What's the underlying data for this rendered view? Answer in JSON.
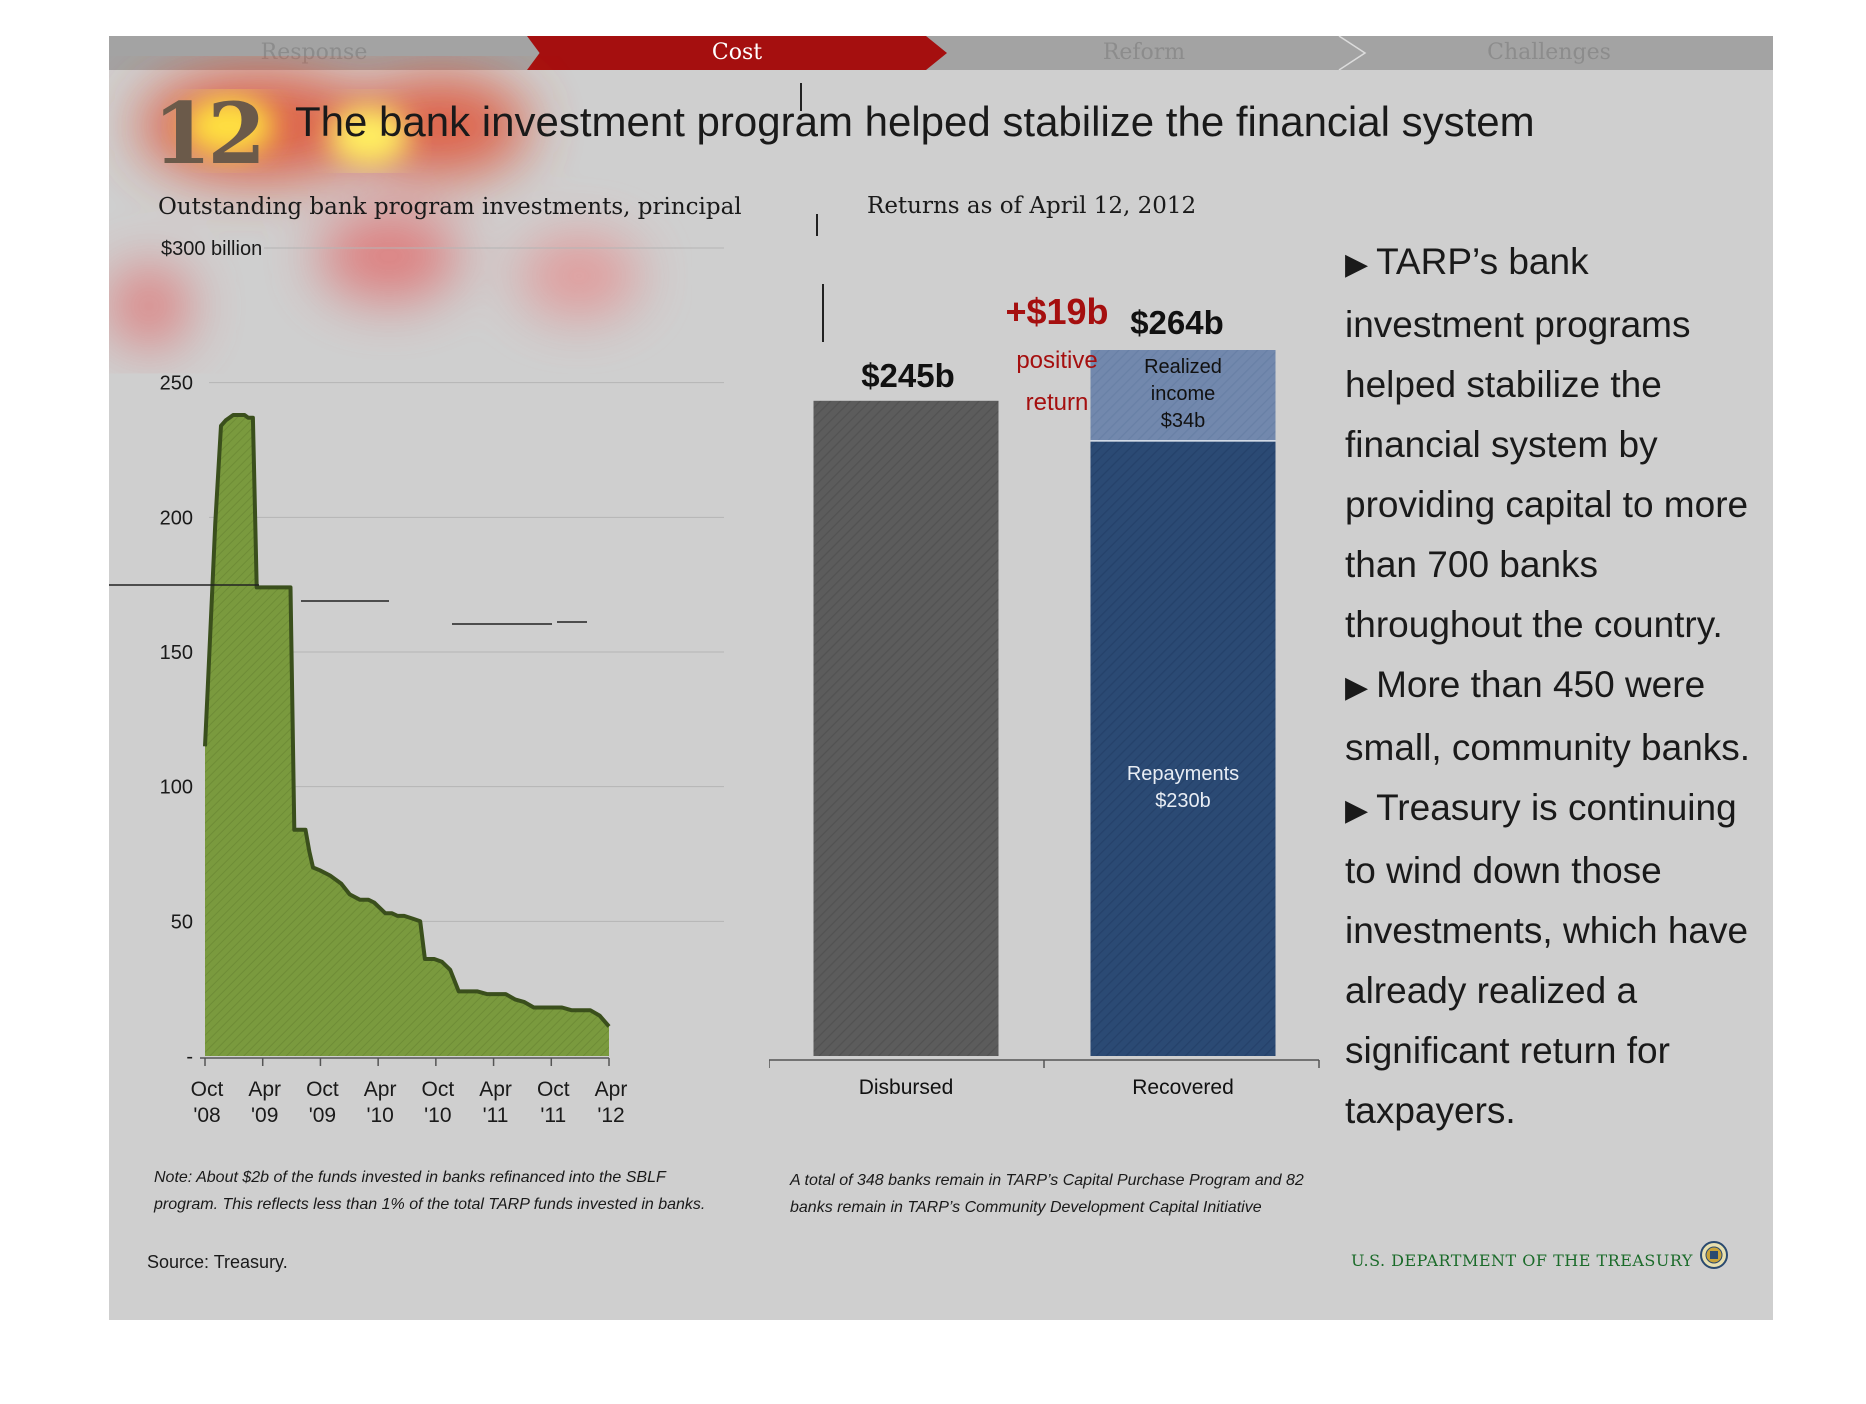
{
  "nav": {
    "tabs": [
      {
        "label": "Response",
        "active": false
      },
      {
        "label": "Cost",
        "active": true
      },
      {
        "label": "Reform",
        "active": false
      },
      {
        "label": "Challenges",
        "active": false
      }
    ]
  },
  "slide": {
    "number": "12",
    "title": "The bank investment program helped stabilize the financial system"
  },
  "left_panel": {
    "title": "Outstanding bank program investments, principal",
    "note": "Note: About $2b of the funds invested in banks refinanced into the SBLF program. This reflects less than 1% of the total TARP funds invested in banks."
  },
  "right_panel": {
    "title": "Returns as of April 12, 2012",
    "gain_label": "+$19b",
    "gain_sublabel_1": "positive",
    "gain_sublabel_2": "return",
    "note": "A total of 348 banks remain in TARP’s Capital Purchase Program and 82 banks remain in TARP’s Community Development Capital Initiative"
  },
  "bullets": [
    "TARP’s bank investment programs helped stabilize the financial system by providing capital to more than 700 banks throughout the country.",
    "More than 450 were small, community banks.",
    "Treasury is continuing to wind down those investments, which have already realized a significant return for taxpayers."
  ],
  "footer": {
    "source": "Source: Treasury.",
    "agency": "U.S. DEPARTMENT OF THE TREASURY"
  },
  "colors": {
    "area_fill": "#7a9a3e",
    "area_line": "#3a4f1c",
    "disbursed": "#5c5c5c",
    "repayments": "#2b4a74",
    "realized_income": "#7288ad",
    "accent_red": "#a50f0f",
    "nav_active": "#a50f0f"
  },
  "chart_data": [
    {
      "type": "area",
      "title": "Outstanding bank program investments, principal",
      "ylabel": "",
      "xlabel": "",
      "ylim": [
        0,
        300
      ],
      "y_ticks": [
        {
          "value": 0,
          "label": "-"
        },
        {
          "value": 50,
          "label": "50"
        },
        {
          "value": 100,
          "label": "100"
        },
        {
          "value": 150,
          "label": "150"
        },
        {
          "value": 200,
          "label": "200"
        },
        {
          "value": 250,
          "label": "250"
        },
        {
          "value": 300,
          "label": "$300 billion"
        }
      ],
      "x_ticks": [
        {
          "line1": "Oct",
          "line2": "'08"
        },
        {
          "line1": "Apr",
          "line2": "'09"
        },
        {
          "line1": "Oct",
          "line2": "'09"
        },
        {
          "line1": "Apr",
          "line2": "'10"
        },
        {
          "line1": "Oct",
          "line2": "'10"
        },
        {
          "line1": "Apr",
          "line2": "'11"
        },
        {
          "line1": "Oct",
          "line2": "'11"
        },
        {
          "line1": "Apr",
          "line2": "'12"
        }
      ],
      "grid": true,
      "series": [
        {
          "x": [
            0.0,
            0.3,
            0.8,
            1.1,
            1.7,
            2.2,
            2.6,
            3.0,
            3.3,
            4.2,
            4.6,
            5.1,
            5.5,
            6.0,
            6.4,
            6.8,
            7.1,
            7.6,
            7.9,
            8.4,
            8.6,
            9.1,
            9.5,
            10.1,
            10.7,
            11.1,
            11.5,
            12.2,
            13.3,
            14.5,
            15.4,
            16.5,
            17.4,
            18.0,
            18.6,
            19.2,
            19.9,
            20.5,
            21.2,
            22.1,
            22.9,
            23.4,
            23.9,
            24.4,
            25.2,
            26.1,
            27.0,
            28.0,
            29.0,
            30.0,
            31.0,
            32.0,
            33.0,
            34.0,
            35.0,
            36.0,
            37.0,
            38.0,
            39.0,
            40.0,
            41.0,
            42.0,
            43.0
          ],
          "values": [
            115,
            137,
            175,
            198,
            234,
            236,
            237,
            238,
            238,
            238,
            237,
            237,
            174,
            174,
            174,
            174,
            174,
            174,
            174,
            174,
            174,
            174,
            84,
            84,
            84,
            76,
            70,
            69,
            67,
            64,
            60,
            58,
            58,
            57,
            55,
            53,
            53,
            52,
            52,
            51,
            50,
            36,
            36,
            36,
            35,
            32,
            24,
            24,
            24,
            23,
            23,
            23,
            21,
            20,
            18,
            18,
            18,
            18,
            17,
            17,
            17,
            15,
            11
          ]
        }
      ],
      "x_units": "months since Oct 2008"
    },
    {
      "type": "bar",
      "title": "Returns as of April 12, 2012",
      "categories": [
        "Disbursed",
        "Recovered"
      ],
      "series": [
        {
          "name": "",
          "values": [
            245,
            0
          ]
        },
        {
          "name": "Repayments",
          "values": [
            0,
            230
          ]
        },
        {
          "name": "Realized income",
          "values": [
            0,
            34
          ]
        }
      ],
      "totals": [
        "$245b",
        "$264b"
      ],
      "segment_labels": {
        "repayments": [
          "Repayments",
          "$230b"
        ],
        "realized_income": [
          "Realized",
          "income",
          "$34b"
        ]
      },
      "ylim": [
        0,
        280
      ],
      "grid": false
    }
  ]
}
